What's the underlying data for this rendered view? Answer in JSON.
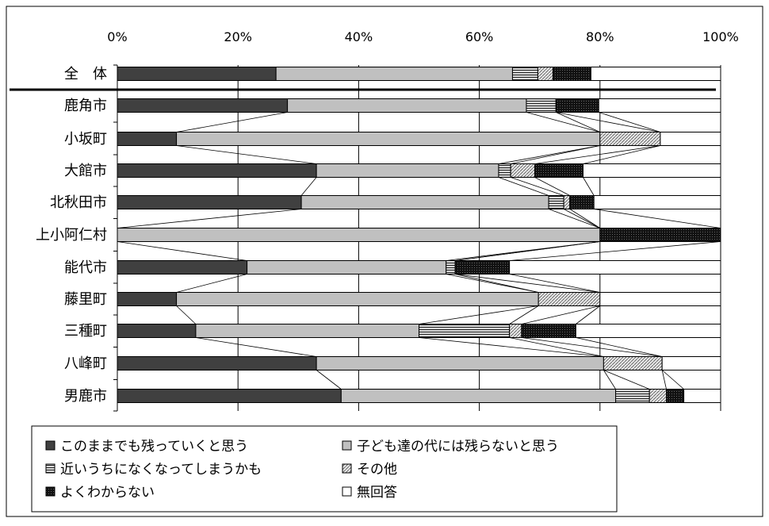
{
  "chart_data": {
    "type": "bar",
    "orientation": "horizontal",
    "stacked": "percent",
    "series_lines": true,
    "xlim": [
      0,
      100
    ],
    "x_ticks": [
      "0%",
      "20%",
      "40%",
      "60%",
      "80%",
      "100%"
    ],
    "grid": "vertical",
    "legend_position": "bottom",
    "categories": [
      "全　体",
      "鹿角市",
      "小坂町",
      "大館市",
      "北秋田市",
      "上小阿仁村",
      "能代市",
      "藤里町",
      "三種町",
      "八峰町",
      "男鹿市"
    ],
    "series": [
      {
        "name": "このままでも残っていくと思う",
        "color": "#404040",
        "pattern": "solid",
        "values": [
          26.3,
          28.2,
          9.8,
          33.0,
          30.5,
          0.0,
          21.5,
          9.8,
          13.0,
          33.0,
          37.1
        ]
      },
      {
        "name": "子ども達の代には残らないと思う",
        "color": "#c0c0c0",
        "pattern": "solid",
        "values": [
          39.2,
          39.6,
          70.2,
          30.2,
          41.0,
          80.0,
          33.0,
          60.0,
          37.0,
          47.6,
          45.5
        ]
      },
      {
        "name": "近いうちになくなってしまうかも",
        "color": "#d0d0d0",
        "pattern": "hlines",
        "values": [
          4.2,
          4.9,
          0.0,
          2.0,
          2.5,
          0.0,
          1.5,
          0.0,
          15.0,
          0.0,
          5.6
        ]
      },
      {
        "name": "その他",
        "color": "#e0e0e0",
        "pattern": "diag",
        "values": [
          2.5,
          0.0,
          10.0,
          4.0,
          1.0,
          0.0,
          0.0,
          10.2,
          2.0,
          9.7,
          2.8
        ]
      },
      {
        "name": "よくわからない",
        "color": "#181818",
        "pattern": "dots",
        "values": [
          6.3,
          7.1,
          0.0,
          8.0,
          4.0,
          20.0,
          9.0,
          0.0,
          9.0,
          0.0,
          2.9
        ]
      },
      {
        "name": "無回答",
        "color": "#ffffff",
        "pattern": "solid",
        "values": [
          21.5,
          20.2,
          10.0,
          22.8,
          21.0,
          0.0,
          35.0,
          20.0,
          24.0,
          9.7,
          6.1
        ]
      }
    ]
  }
}
